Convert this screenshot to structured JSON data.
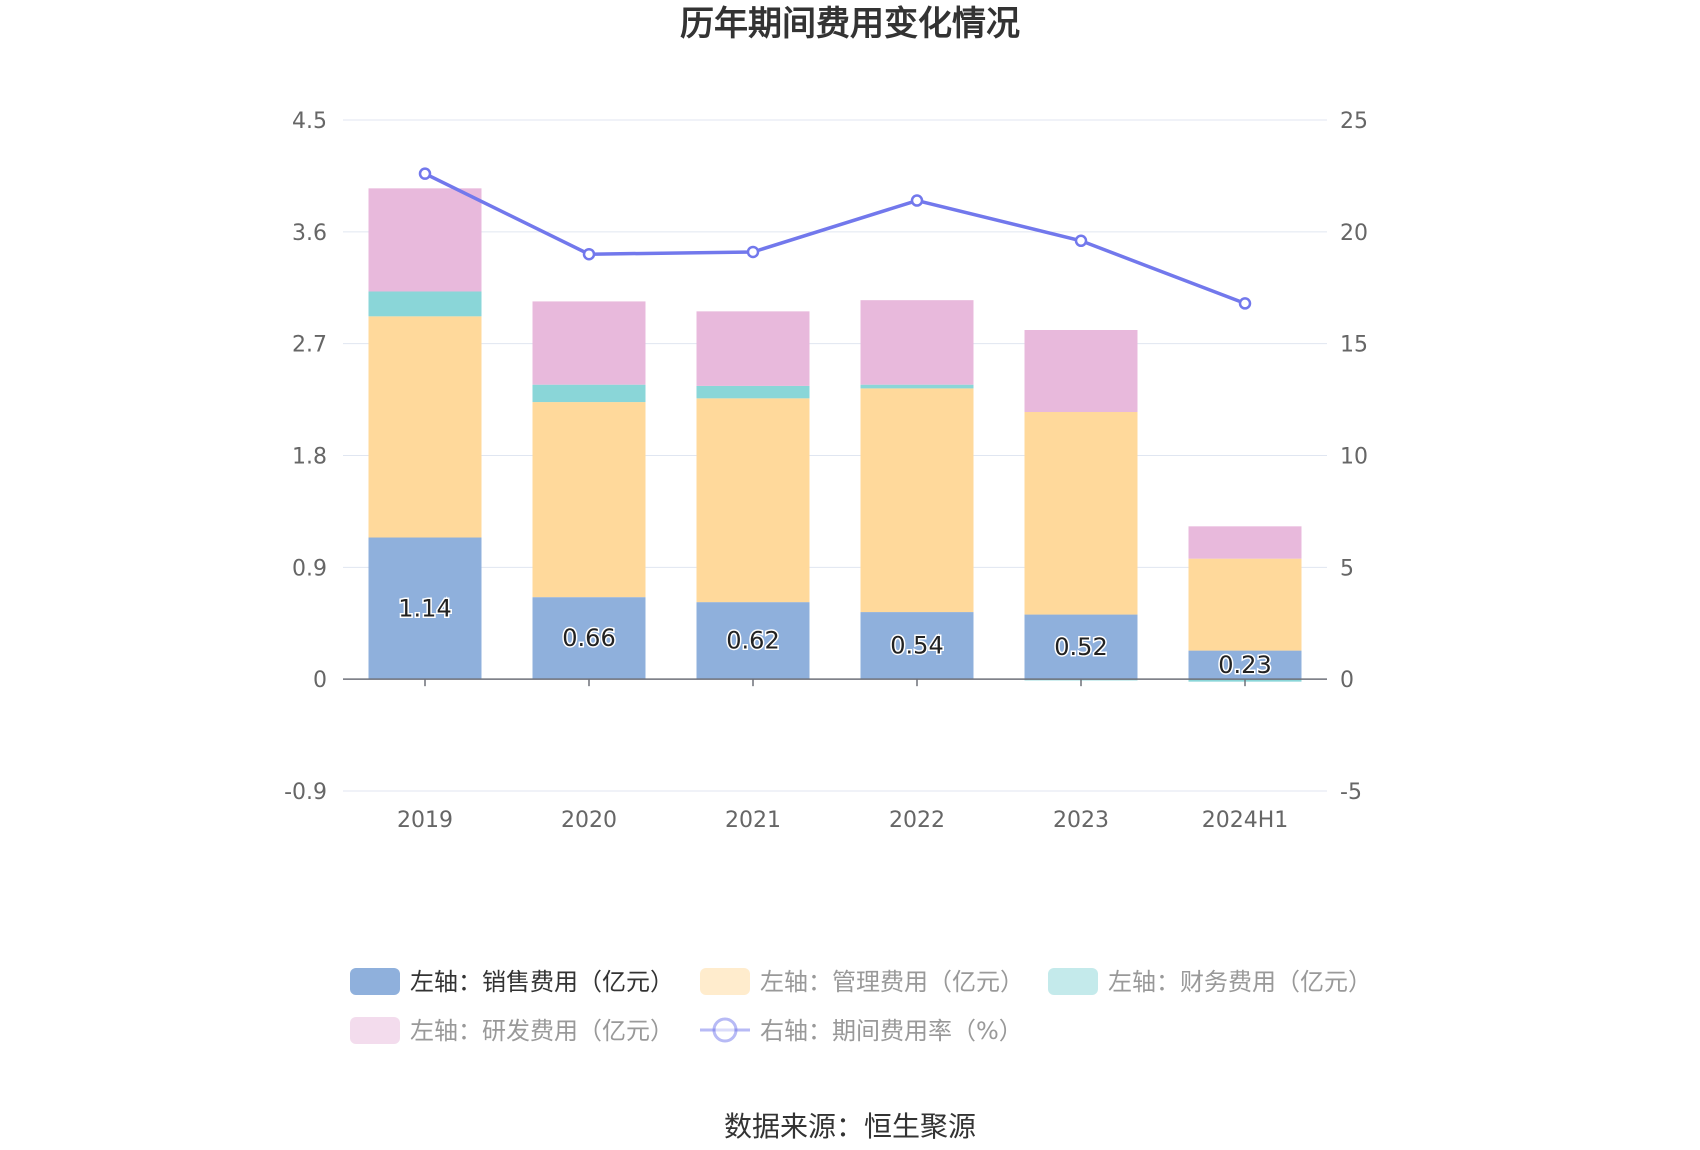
{
  "title": "历年期间费用变化情况",
  "source": "数据来源：恒生聚源",
  "chart_data": {
    "type": "bar",
    "categories": [
      "2019",
      "2020",
      "2021",
      "2022",
      "2023",
      "2024H1"
    ],
    "left_axis": {
      "ylim": [
        -0.9,
        4.5
      ],
      "ticks": [
        "4.5",
        "3.6",
        "2.7",
        "1.8",
        "0.9",
        "0",
        "-0.9"
      ]
    },
    "right_axis": {
      "ylim": [
        -5,
        25
      ],
      "ticks": [
        "25",
        "20",
        "15",
        "10",
        "5",
        "0",
        "-5"
      ]
    },
    "grid": true,
    "legend_position": "bottom",
    "series": [
      {
        "name": "左轴：销售费用（亿元）",
        "type": "bar",
        "stack": true,
        "axis": "left",
        "color": "#8fb0dc",
        "values": [
          1.14,
          0.66,
          0.62,
          0.54,
          0.52,
          0.23
        ],
        "labels": [
          "1.14",
          "0.66",
          "0.62",
          "0.54",
          "0.52",
          "0.23"
        ]
      },
      {
        "name": "左轴：管理费用（亿元）",
        "type": "bar",
        "stack": true,
        "axis": "left",
        "color": "#ffd99b",
        "values": [
          1.78,
          1.57,
          1.64,
          1.8,
          1.63,
          0.74
        ]
      },
      {
        "name": "左轴：财务费用（亿元）",
        "type": "bar",
        "stack": true,
        "axis": "left",
        "color": "#8ad6d8",
        "values": [
          0.2,
          0.14,
          0.1,
          0.03,
          -0.01,
          -0.02
        ]
      },
      {
        "name": "左轴：研发费用（亿元）",
        "type": "bar",
        "stack": true,
        "axis": "left",
        "color": "#e8b9dc",
        "values": [
          0.83,
          0.67,
          0.6,
          0.68,
          0.66,
          0.26
        ]
      },
      {
        "name": "右轴：期间费用率（%）",
        "type": "line",
        "axis": "right",
        "color": "#7278ec",
        "values": [
          22.6,
          19.0,
          19.1,
          21.4,
          19.6,
          16.8
        ]
      }
    ]
  }
}
